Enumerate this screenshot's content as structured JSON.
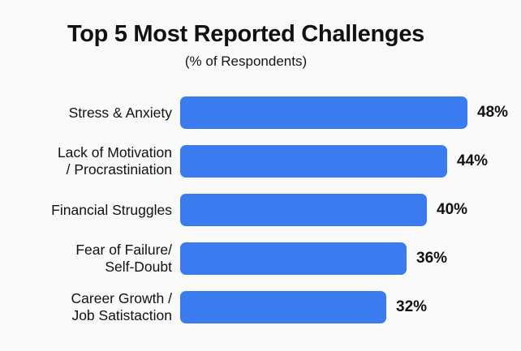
{
  "page": {
    "background_color": "#fafafa"
  },
  "chart_data": {
    "type": "bar",
    "orientation": "horizontal",
    "title": "Top 5 Most Reported Challenges",
    "subtitle": "(% of Respondents)",
    "unit": "%",
    "categories": [
      "Stress & Anxiety",
      "Lack of Motivation / Procrastiniation",
      "Financial Struggles",
      "Fear of Failure/ Self-Doubt",
      "Career Growth / Job Satistaction"
    ],
    "values": [
      48,
      44,
      40,
      36,
      32
    ],
    "value_labels": [
      "48%",
      "44%",
      "40%",
      "36%",
      "32%"
    ],
    "bar_color": "#3a7cf0",
    "text_color": "#111111",
    "xlim": [
      0,
      48
    ],
    "grid": false,
    "legend": false,
    "rows": [
      {
        "label": "Stress & Anxiety",
        "value": 48,
        "value_label": "48%"
      },
      {
        "label": "Lack of Motivation\n/ Procrastiniation",
        "value": 44,
        "value_label": "44%"
      },
      {
        "label": "Financial Struggles",
        "value": 40,
        "value_label": "40%"
      },
      {
        "label": "Fear of Failure/\nSelf-Doubt",
        "value": 36,
        "value_label": "36%"
      },
      {
        "label": "Career Growth /\nJob Satistaction",
        "value": 32,
        "value_label": "32%"
      }
    ]
  }
}
